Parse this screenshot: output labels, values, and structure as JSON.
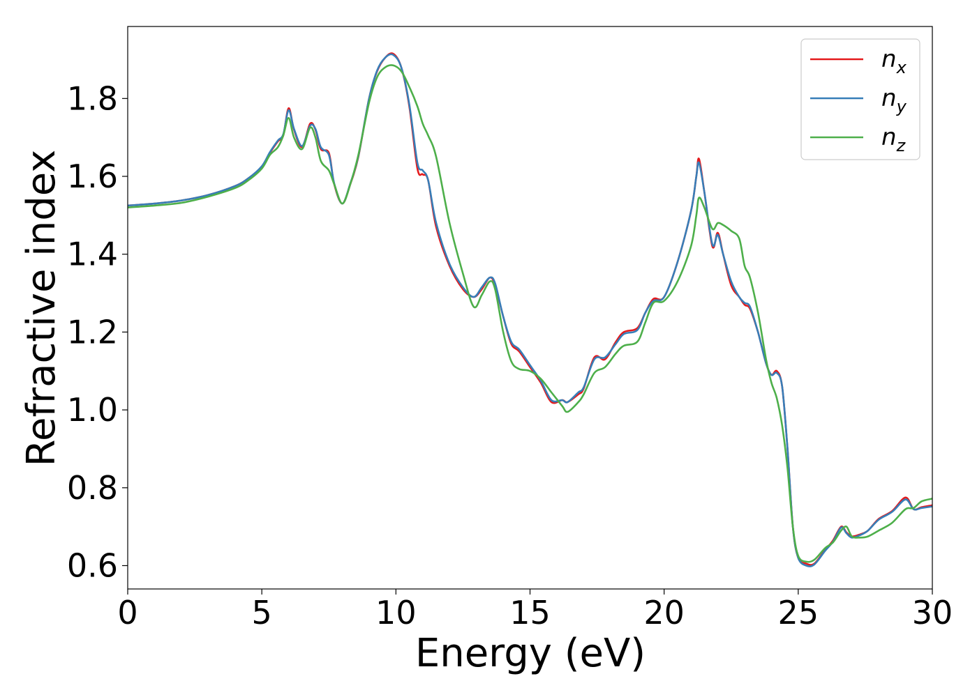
{
  "chart_data": {
    "type": "line",
    "xlabel": "Energy (eV)",
    "ylabel": "Refractive index",
    "xlim": [
      0,
      30
    ],
    "ylim": [
      0.54,
      1.985
    ],
    "xticks": [
      0,
      5,
      10,
      15,
      20,
      25,
      30
    ],
    "xtick_labels": [
      "0",
      "5",
      "10",
      "15",
      "20",
      "25",
      "30"
    ],
    "yticks": [
      0.6,
      0.8,
      1.0,
      1.2,
      1.4,
      1.6,
      1.8
    ],
    "ytick_labels": [
      "0.6",
      "0.8",
      "1.0",
      "1.2",
      "1.4",
      "1.6",
      "1.8"
    ],
    "grid": false,
    "legend_position": "top-right",
    "series": [
      {
        "name": "n",
        "subscript": "x",
        "color": "#e41a1c",
        "x": [
          0,
          1,
          2,
          3,
          4,
          4.5,
          5,
          5.3,
          5.6,
          5.8,
          6.0,
          6.2,
          6.5,
          6.8,
          7.0,
          7.2,
          7.5,
          7.7,
          8.0,
          8.3,
          8.6,
          9.0,
          9.3,
          9.6,
          9.9,
          10.2,
          10.5,
          10.8,
          11.0,
          11.2,
          11.5,
          12.0,
          12.5,
          12.9,
          13.2,
          13.5,
          13.7,
          14.0,
          14.3,
          14.6,
          15.0,
          15.4,
          15.8,
          16.2,
          16.4,
          16.8,
          17.0,
          17.4,
          17.8,
          18.2,
          18.5,
          19.0,
          19.3,
          19.6,
          20.0,
          20.5,
          21.0,
          21.2,
          21.3,
          21.5,
          21.8,
          22.0,
          22.2,
          22.5,
          22.8,
          23.0,
          23.2,
          23.5,
          23.8,
          24.0,
          24.2,
          24.4,
          24.6,
          24.8,
          25.0,
          25.3,
          25.6,
          26.0,
          26.3,
          26.6,
          26.8,
          27.0,
          27.3,
          27.6,
          28.0,
          28.5,
          29.0,
          29.3,
          29.6,
          30.0
        ],
        "values": [
          1.525,
          1.53,
          1.538,
          1.552,
          1.575,
          1.595,
          1.625,
          1.66,
          1.69,
          1.705,
          1.775,
          1.72,
          1.675,
          1.735,
          1.72,
          1.67,
          1.66,
          1.58,
          1.53,
          1.58,
          1.65,
          1.8,
          1.87,
          1.905,
          1.915,
          1.88,
          1.78,
          1.62,
          1.605,
          1.59,
          1.47,
          1.37,
          1.31,
          1.29,
          1.31,
          1.34,
          1.32,
          1.24,
          1.17,
          1.15,
          1.11,
          1.07,
          1.02,
          1.025,
          1.02,
          1.04,
          1.055,
          1.135,
          1.13,
          1.175,
          1.2,
          1.21,
          1.25,
          1.285,
          1.29,
          1.38,
          1.51,
          1.6,
          1.645,
          1.56,
          1.42,
          1.455,
          1.4,
          1.32,
          1.29,
          1.27,
          1.26,
          1.2,
          1.12,
          1.09,
          1.1,
          1.06,
          0.9,
          0.7,
          0.62,
          0.605,
          0.605,
          0.64,
          0.665,
          0.7,
          0.685,
          0.675,
          0.68,
          0.69,
          0.72,
          0.74,
          0.775,
          0.745,
          0.75,
          0.755
        ]
      },
      {
        "name": "n",
        "subscript": "y",
        "color": "#377eb8",
        "x": [
          0,
          1,
          2,
          3,
          4,
          4.5,
          5,
          5.3,
          5.6,
          5.8,
          6.0,
          6.2,
          6.5,
          6.8,
          7.0,
          7.2,
          7.5,
          7.7,
          8.0,
          8.3,
          8.6,
          9.0,
          9.3,
          9.6,
          9.9,
          10.2,
          10.5,
          10.8,
          11.0,
          11.2,
          11.5,
          12.0,
          12.5,
          12.9,
          13.2,
          13.5,
          13.7,
          14.0,
          14.3,
          14.6,
          15.0,
          15.4,
          15.8,
          16.2,
          16.4,
          16.8,
          17.0,
          17.4,
          17.8,
          18.2,
          18.5,
          19.0,
          19.3,
          19.6,
          20.0,
          20.5,
          21.0,
          21.2,
          21.3,
          21.5,
          21.8,
          22.0,
          22.2,
          22.5,
          22.8,
          23.0,
          23.2,
          23.5,
          23.8,
          24.0,
          24.2,
          24.4,
          24.6,
          24.8,
          25.0,
          25.3,
          25.6,
          26.0,
          26.3,
          26.6,
          26.8,
          27.0,
          27.3,
          27.6,
          28.0,
          28.5,
          29.0,
          29.3,
          29.6,
          30.0
        ],
        "values": [
          1.525,
          1.53,
          1.538,
          1.552,
          1.575,
          1.595,
          1.626,
          1.662,
          1.692,
          1.708,
          1.77,
          1.722,
          1.678,
          1.73,
          1.722,
          1.675,
          1.655,
          1.582,
          1.53,
          1.582,
          1.652,
          1.8,
          1.872,
          1.905,
          1.912,
          1.88,
          1.785,
          1.635,
          1.615,
          1.59,
          1.48,
          1.375,
          1.315,
          1.29,
          1.315,
          1.34,
          1.325,
          1.24,
          1.175,
          1.155,
          1.115,
          1.075,
          1.025,
          1.025,
          1.02,
          1.045,
          1.058,
          1.13,
          1.135,
          1.17,
          1.195,
          1.205,
          1.25,
          1.28,
          1.29,
          1.38,
          1.51,
          1.6,
          1.635,
          1.56,
          1.425,
          1.45,
          1.4,
          1.33,
          1.29,
          1.275,
          1.265,
          1.2,
          1.12,
          1.09,
          1.095,
          1.06,
          0.9,
          0.7,
          0.62,
          0.6,
          0.603,
          0.638,
          0.662,
          0.698,
          0.683,
          0.672,
          0.678,
          0.69,
          0.718,
          0.738,
          0.77,
          0.745,
          0.748,
          0.752
        ]
      },
      {
        "name": "n",
        "subscript": "z",
        "color": "#4daf4a",
        "x": [
          0,
          1,
          2,
          3,
          4,
          4.5,
          5,
          5.3,
          5.6,
          5.8,
          6.0,
          6.2,
          6.5,
          6.8,
          7.0,
          7.2,
          7.5,
          7.7,
          8.0,
          8.3,
          8.6,
          9.0,
          9.3,
          9.6,
          9.9,
          10.2,
          10.5,
          10.8,
          11.0,
          11.2,
          11.5,
          12.0,
          12.5,
          12.9,
          13.2,
          13.5,
          13.7,
          14.0,
          14.3,
          14.6,
          15.0,
          15.4,
          15.8,
          16.2,
          16.4,
          16.8,
          17.0,
          17.4,
          17.8,
          18.2,
          18.5,
          19.0,
          19.3,
          19.6,
          20.0,
          20.5,
          21.0,
          21.2,
          21.3,
          21.5,
          21.8,
          22.0,
          22.2,
          22.5,
          22.8,
          23.0,
          23.2,
          23.5,
          23.8,
          24.0,
          24.2,
          24.4,
          24.6,
          24.8,
          25.0,
          25.3,
          25.6,
          26.0,
          26.3,
          26.6,
          26.8,
          27.0,
          27.3,
          27.6,
          28.0,
          28.5,
          29.0,
          29.3,
          29.6,
          30.0
        ],
        "values": [
          1.52,
          1.525,
          1.532,
          1.548,
          1.57,
          1.59,
          1.62,
          1.655,
          1.675,
          1.705,
          1.75,
          1.7,
          1.67,
          1.725,
          1.7,
          1.64,
          1.615,
          1.58,
          1.53,
          1.58,
          1.655,
          1.79,
          1.855,
          1.88,
          1.885,
          1.87,
          1.83,
          1.78,
          1.735,
          1.705,
          1.65,
          1.48,
          1.35,
          1.265,
          1.295,
          1.33,
          1.31,
          1.2,
          1.125,
          1.105,
          1.1,
          1.08,
          1.045,
          1.01,
          0.995,
          1.02,
          1.04,
          1.095,
          1.11,
          1.145,
          1.165,
          1.175,
          1.225,
          1.275,
          1.28,
          1.33,
          1.42,
          1.5,
          1.545,
          1.52,
          1.465,
          1.48,
          1.475,
          1.46,
          1.44,
          1.37,
          1.34,
          1.25,
          1.13,
          1.07,
          1.03,
          0.96,
          0.85,
          0.7,
          0.625,
          0.61,
          0.615,
          0.645,
          0.66,
          0.69,
          0.7,
          0.675,
          0.672,
          0.675,
          0.69,
          0.71,
          0.745,
          0.748,
          0.765,
          0.772
        ]
      }
    ]
  }
}
